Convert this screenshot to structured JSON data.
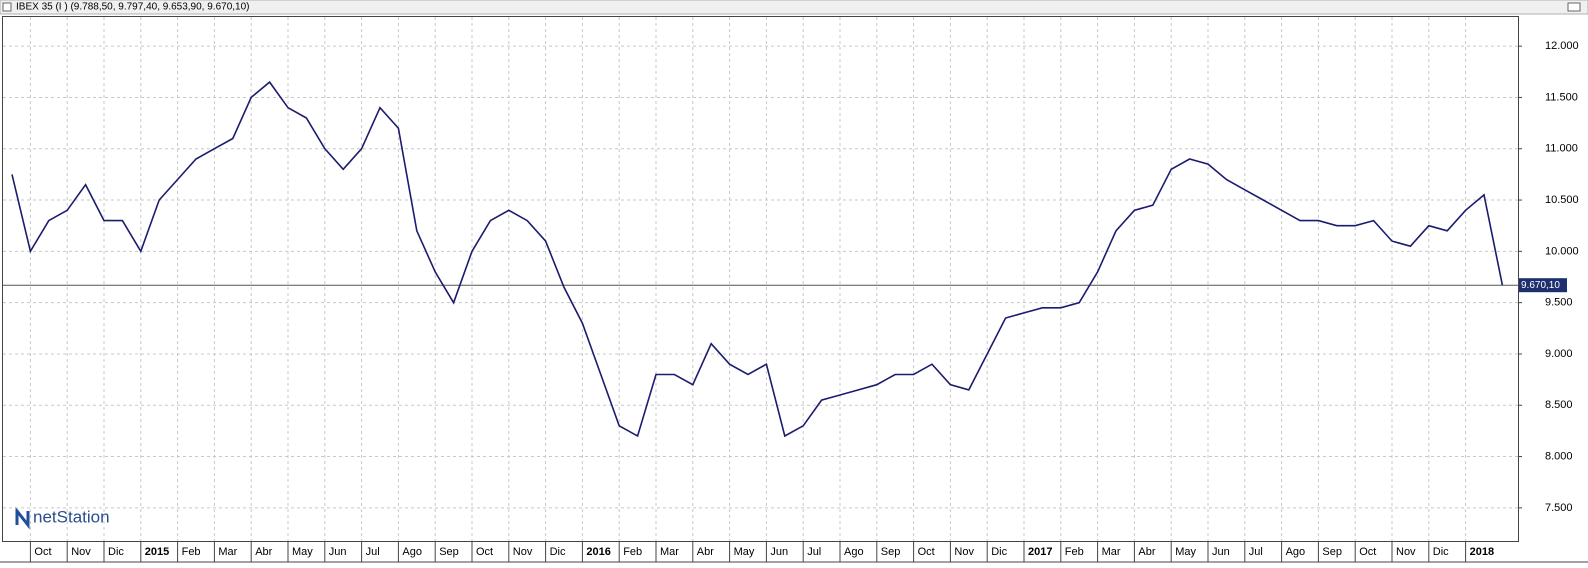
{
  "chart_data": {
    "type": "line",
    "title": "IBEX 35 (I ) (9.788,50, 9.797,40, 9.653,90, 9.670,10)",
    "logo": "netStation",
    "categories": [
      null,
      "Oct",
      null,
      "Nov",
      null,
      "Dic",
      null,
      "2015",
      null,
      "Feb",
      null,
      "Mar",
      null,
      "Abr",
      null,
      "May",
      null,
      "Jun",
      null,
      "Jul",
      null,
      "Ago",
      null,
      "Sep",
      null,
      "Oct",
      null,
      "Nov",
      null,
      "Dic",
      null,
      "2016",
      null,
      "Feb",
      null,
      "Mar",
      null,
      "Abr",
      null,
      "May",
      null,
      "Jun",
      null,
      "Jul",
      null,
      "Ago",
      null,
      "Sep",
      null,
      "Oct",
      null,
      "Nov",
      null,
      "Dic",
      null,
      "2017",
      null,
      "Feb",
      null,
      "Mar",
      null,
      "Abr",
      null,
      "May",
      null,
      "Jun",
      null,
      "Jul",
      null,
      "Ago",
      null,
      "Sep",
      null,
      "Oct",
      null,
      "Nov",
      null,
      "Dic",
      null,
      "2018",
      null,
      null
    ],
    "values": [
      10750,
      10000,
      10300,
      10400,
      10650,
      10300,
      10300,
      10000,
      10500,
      10700,
      10900,
      11000,
      11100,
      11500,
      11650,
      11400,
      11300,
      11000,
      10800,
      11000,
      11400,
      11200,
      10200,
      9800,
      9500,
      10000,
      10300,
      10400,
      10300,
      10100,
      9650,
      9300,
      8800,
      8300,
      8200,
      8800,
      8800,
      8700,
      9100,
      8900,
      8800,
      8900,
      8200,
      8300,
      8550,
      8600,
      8650,
      8700,
      8800,
      8800,
      8900,
      8700,
      8650,
      9000,
      9350,
      9400,
      9450,
      9450,
      9500,
      9800,
      10200,
      10400,
      10450,
      10800,
      10900,
      10850,
      10700,
      10600,
      10500,
      10400,
      10300,
      10300,
      10250,
      10250,
      10300,
      10100,
      10050,
      10250,
      10200,
      10400,
      10550,
      9670.1
    ],
    "color": "#1c1c6e",
    "last_value": {
      "value": 9670.1,
      "label": "9.670,10"
    },
    "ylim": [
      7177,
      12284
    ],
    "yticks": [
      {
        "value": 7500,
        "label": "7.500"
      },
      {
        "value": 8000,
        "label": "8.000"
      },
      {
        "value": 8500,
        "label": "8.500"
      },
      {
        "value": 9000,
        "label": "9.000"
      },
      {
        "value": 9500,
        "label": "9.500"
      },
      {
        "value": 10000,
        "label": "10.000"
      },
      {
        "value": 10500,
        "label": "10.500"
      },
      {
        "value": 11000,
        "label": "11.000"
      },
      {
        "value": 11500,
        "label": "11.500"
      },
      {
        "value": 12000,
        "label": "12.000"
      }
    ],
    "grid": true
  }
}
